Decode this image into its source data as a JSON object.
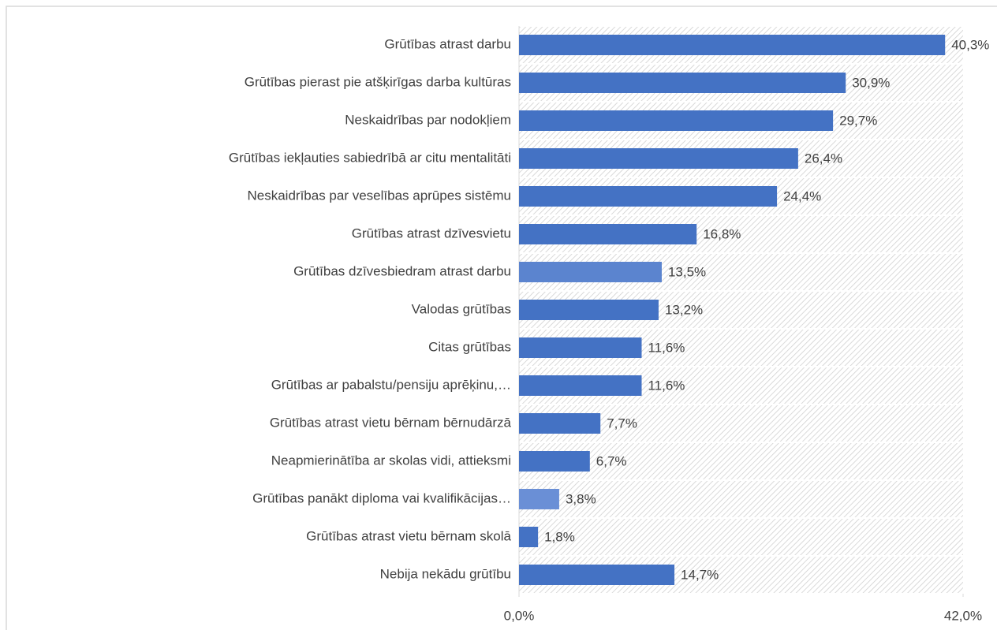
{
  "chart_data": {
    "type": "barh",
    "categories": [
      "Grūtības atrast darbu",
      "Grūtības pierast pie atšķirīgas darba kultūras",
      "Neskaidrības par nodokļiem",
      "Grūtības iekļauties sabiedrībā ar citu mentalitāti",
      "Neskaidrības par veselības aprūpes sistēmu",
      "Grūtības atrast dzīvesvietu",
      "Grūtības dzīvesbiedram atrast darbu",
      "Valodas grūtības",
      "Citas grūtības",
      "Grūtības ar pabalstu/pensiju aprēķinu,…",
      "Grūtības atrast vietu bērnam bērnudārzā",
      "Neapmierinātība ar skolas vidi, attieksmi",
      "Grūtības panākt diploma vai kvalifikācijas…",
      "Grūtības atrast vietu bērnam skolā",
      "Nebija nekādu grūtību"
    ],
    "values": [
      40.3,
      30.9,
      29.7,
      26.4,
      24.4,
      16.8,
      13.5,
      13.2,
      11.6,
      11.6,
      7.7,
      6.7,
      3.8,
      1.8,
      14.7
    ],
    "value_labels": [
      "40,3%",
      "30,9%",
      "29,7%",
      "26,4%",
      "24,4%",
      "16,8%",
      "13,5%",
      "13,2%",
      "11,6%",
      "11,6%",
      "7,7%",
      "6,7%",
      "3,8%",
      "1,8%",
      "14,7%"
    ],
    "colors": [
      "#4472c4",
      "#4472c4",
      "#4472c4",
      "#4472c4",
      "#4472c4",
      "#4472c4",
      "#5b84cf",
      "#4472c4",
      "#4472c4",
      "#4472c4",
      "#4472c4",
      "#4472c4",
      "#6a8fd6",
      "#4472c4",
      "#4472c4"
    ],
    "xlim": [
      0,
      42
    ],
    "xticks": [
      {
        "value": 0,
        "label": "0,0%"
      },
      {
        "value": 42,
        "label": "42,0%"
      }
    ]
  }
}
